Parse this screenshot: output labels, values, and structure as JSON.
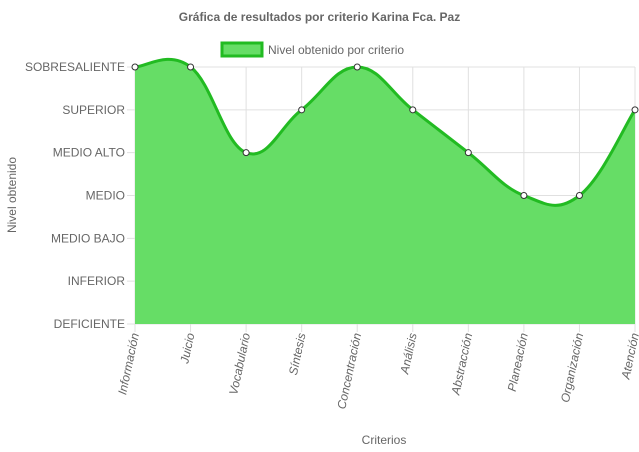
{
  "chart_data": {
    "type": "area",
    "title": "Gráfica de resultados por criterio Karina Fca. Paz",
    "xlabel": "Criterios",
    "ylabel": "Nivel obtenido",
    "levels": [
      "DEFICIENTE",
      "INFERIOR",
      "MEDIO BAJO",
      "MEDIO",
      "MEDIO ALTO",
      "SUPERIOR",
      "SOBRESALIENTE"
    ],
    "categories": [
      "Información",
      "Juicio",
      "Vocabulario",
      "Síntesis",
      "Concentración",
      "Análisis",
      "Abstracción",
      "Planeación",
      "Organización",
      "Atención"
    ],
    "series": [
      {
        "name": "Nivel obtenido por criterio",
        "values": [
          7,
          7,
          5,
          6,
          7,
          6,
          5,
          4,
          4,
          6
        ],
        "labels": [
          "SOBRESALIENTE",
          "SOBRESALIENTE",
          "MEDIO ALTO",
          "SUPERIOR",
          "SOBRESALIENTE",
          "SUPERIOR",
          "MEDIO ALTO",
          "MEDIO",
          "MEDIO",
          "SUPERIOR"
        ],
        "fill_color": "#66dd66",
        "line_color": "#22bb22"
      }
    ],
    "ylim": [
      1,
      7
    ],
    "grid": true,
    "legend_position": "top"
  }
}
